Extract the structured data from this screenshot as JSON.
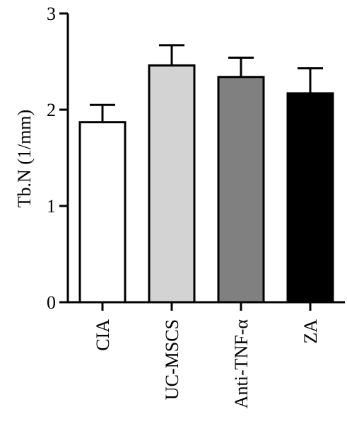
{
  "chart_data": {
    "type": "bar",
    "ylabel": "Tb.N (1/mm)",
    "xlabel": "",
    "ylim": [
      0,
      3
    ],
    "yticks": [
      0,
      1,
      2,
      3
    ],
    "ytick_labels": [
      "0",
      "1",
      "2",
      "3"
    ],
    "categories": [
      "CIA",
      "UC-MSCS",
      "Anti-TNF-α",
      "ZA"
    ],
    "values": [
      1.87,
      2.46,
      2.34,
      2.17
    ],
    "errors": [
      0.18,
      0.21,
      0.2,
      0.26
    ],
    "colors": [
      "#ffffff",
      "#d3d3d3",
      "#808080",
      "#000000"
    ],
    "grid": false,
    "legend": "none"
  }
}
